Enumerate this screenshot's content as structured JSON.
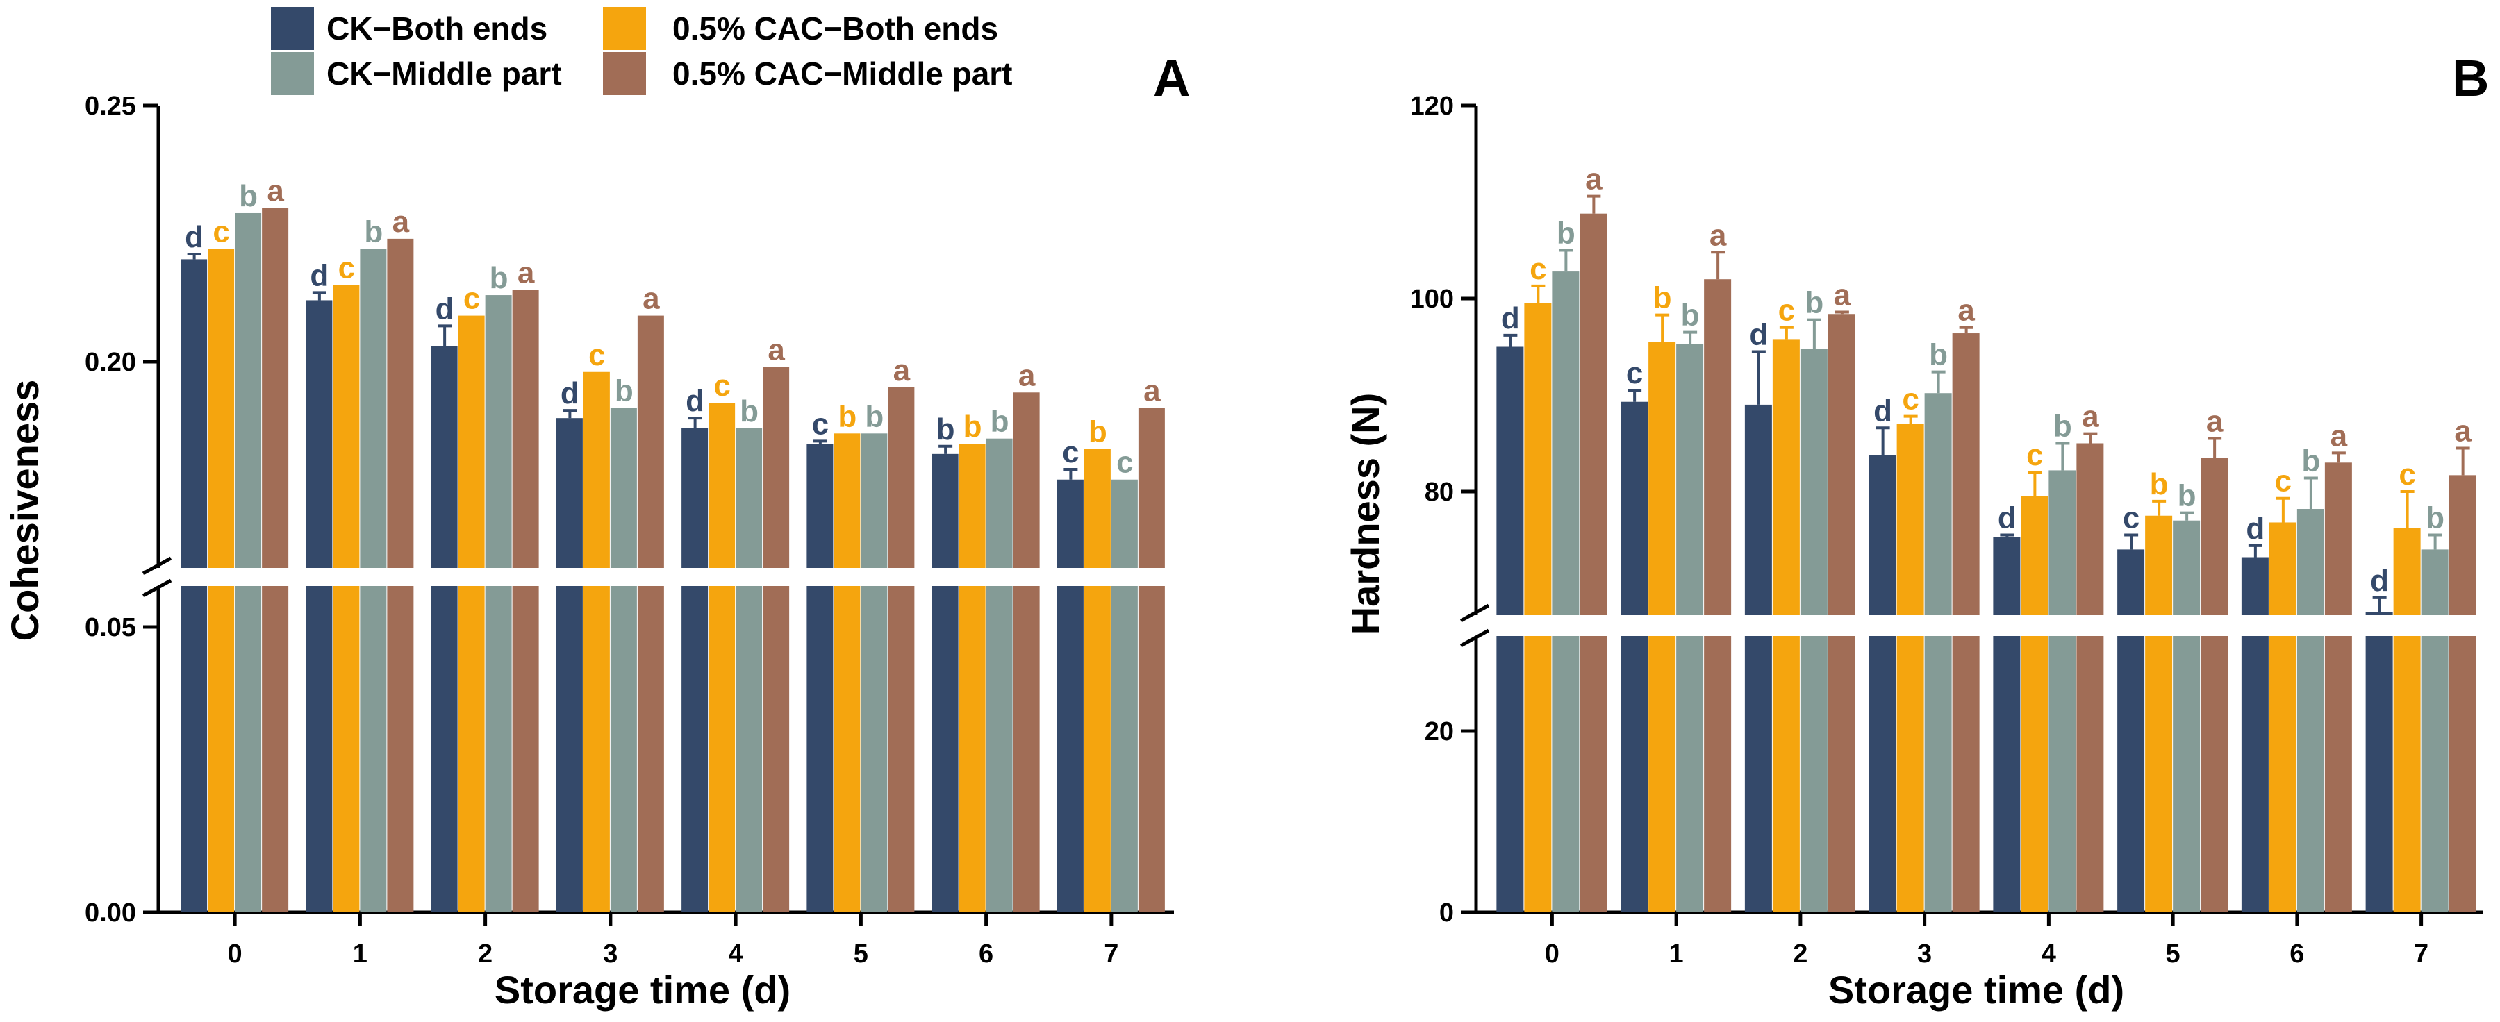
{
  "legend": {
    "placement": "top-left",
    "items": [
      {
        "label": "CK−Both ends",
        "color": "#34496a"
      },
      {
        "label": "CK−Middle part",
        "color": "#849b96"
      },
      {
        "label": "0.5% CAC−Both ends",
        "color": "#f5a50e"
      },
      {
        "label": "0.5% CAC−Middle part",
        "color": "#a16d56"
      }
    ]
  },
  "chart_data": [
    {
      "type": "bar",
      "panel": "A",
      "title": "",
      "xlabel": "Storage time (d)",
      "ylabel": "Cohesiveness",
      "categories": [
        "0",
        "1",
        "2",
        "3",
        "4",
        "5",
        "6",
        "7"
      ],
      "axis_break": {
        "lower": [
          0,
          0.06
        ],
        "upper": [
          0.17,
          0.25
        ]
      },
      "yticks": [
        "0.00",
        "0.05",
        "0.20",
        "0.25"
      ],
      "grid": false,
      "series": [
        {
          "name": "CK−Both ends",
          "color": "#34496a",
          "values": [
            0.22,
            0.212,
            0.203,
            0.189,
            0.187,
            0.184,
            0.182,
            0.177
          ],
          "errors": [
            0.001,
            0.0015,
            0.004,
            0.0015,
            0.002,
            0.0005,
            0.0015,
            0.002
          ],
          "letters": [
            "d",
            "d",
            "d",
            "d",
            "d",
            "c",
            "b",
            "c"
          ]
        },
        {
          "name": "0.5% CAC−Both ends",
          "color": "#f5a50e",
          "values": [
            0.222,
            0.215,
            0.209,
            0.198,
            0.192,
            0.186,
            0.184,
            0.183
          ],
          "errors": [
            0,
            0,
            0,
            0,
            0,
            0,
            0,
            0
          ],
          "letters": [
            "c",
            "c",
            "c",
            "c",
            "c",
            "b",
            "b",
            "b"
          ]
        },
        {
          "name": "CK−Middle part",
          "color": "#849b96",
          "values": [
            0.229,
            0.222,
            0.213,
            0.191,
            0.187,
            0.186,
            0.185,
            0.177
          ],
          "errors": [
            0,
            0,
            0,
            0,
            0,
            0,
            0,
            0
          ],
          "letters": [
            "b",
            "b",
            "b",
            "b",
            "b",
            "b",
            "b",
            "c"
          ]
        },
        {
          "name": "0.5% CAC−Middle part",
          "color": "#a16d56",
          "values": [
            0.23,
            0.224,
            0.214,
            0.209,
            0.199,
            0.195,
            0.194,
            0.191
          ],
          "errors": [
            0,
            0,
            0,
            0,
            0,
            0,
            0,
            0
          ],
          "letters": [
            "a",
            "a",
            "a",
            "a",
            "a",
            "a",
            "a",
            "a"
          ]
        }
      ]
    },
    {
      "type": "bar",
      "panel": "B",
      "title": "",
      "xlabel": "Storage time (d)",
      "ylabel": "Hardness (N)",
      "categories": [
        "0",
        "1",
        "2",
        "3",
        "4",
        "5",
        "6",
        "7"
      ],
      "axis_break": {
        "lower": [
          0,
          30
        ],
        "upper": [
          65,
          120
        ]
      },
      "yticks": [
        "0",
        "20",
        "80",
        "100",
        "120"
      ],
      "grid": false,
      "series": [
        {
          "name": "CK−Both ends",
          "color": "#34496a",
          "values": [
            95.0,
            89.3,
            89.0,
            83.8,
            75.3,
            74.0,
            73.2,
            67.5
          ],
          "errors": [
            1.2,
            1.2,
            5.5,
            2.8,
            0.2,
            1.5,
            1.2,
            1.5
          ],
          "letters": [
            "d",
            "c",
            "d",
            "d",
            "d",
            "c",
            "d",
            "d"
          ]
        },
        {
          "name": "0.5% CAC−Both ends",
          "color": "#f5a50e",
          "values": [
            99.5,
            95.5,
            95.8,
            87.0,
            79.5,
            77.5,
            76.8,
            76.2
          ],
          "errors": [
            1.8,
            2.8,
            1.2,
            0.8,
            2.5,
            1.5,
            2.5,
            3.8
          ],
          "letters": [
            "c",
            "b",
            "c",
            "c",
            "c",
            "b",
            "c",
            "c"
          ]
        },
        {
          "name": "CK−Middle part",
          "color": "#849b96",
          "values": [
            102.8,
            95.3,
            94.8,
            90.2,
            82.2,
            77.0,
            78.2,
            74.0
          ],
          "errors": [
            2.2,
            1.2,
            3.0,
            2.2,
            2.8,
            0.8,
            3.2,
            1.5
          ],
          "letters": [
            "b",
            "b",
            "b",
            "b",
            "b",
            "b",
            "b",
            "b"
          ]
        },
        {
          "name": "0.5% CAC−Middle part",
          "color": "#a16d56",
          "values": [
            108.8,
            102.0,
            98.4,
            96.4,
            85.0,
            83.5,
            83.0,
            81.7
          ],
          "errors": [
            1.8,
            2.8,
            0.2,
            0.6,
            1.0,
            2.0,
            1.0,
            2.8
          ],
          "letters": [
            "a",
            "a",
            "a",
            "a",
            "a",
            "a",
            "a",
            "a"
          ]
        }
      ]
    }
  ]
}
